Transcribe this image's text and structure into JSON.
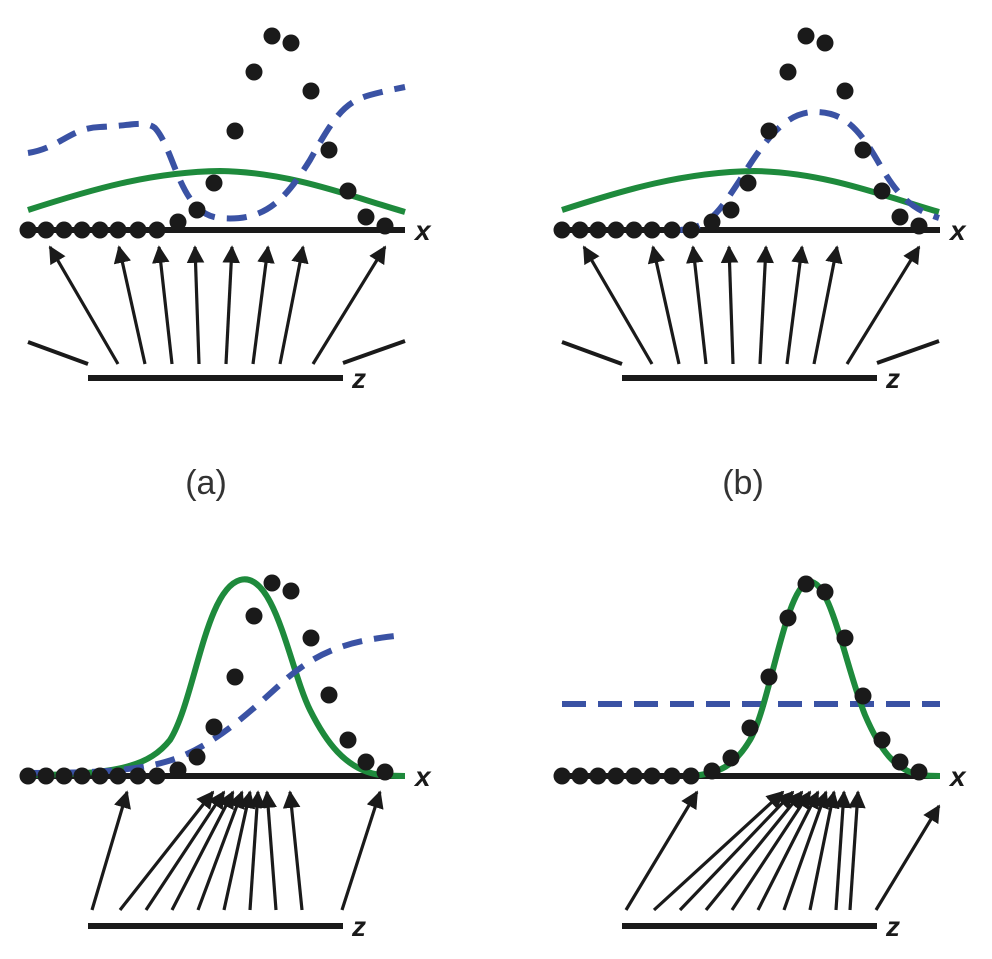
{
  "colors": {
    "green_curve": "#1e8a3c",
    "blue_dashed": "#3a52a4",
    "black": "#1a1a1a"
  },
  "axis_labels": {
    "x": "x",
    "z": "z"
  },
  "panels": [
    {
      "id": "a",
      "caption": "(a)"
    },
    {
      "id": "b",
      "caption": "(b)"
    },
    {
      "id": "c",
      "caption": ""
    },
    {
      "id": "d",
      "caption": ""
    }
  ]
}
